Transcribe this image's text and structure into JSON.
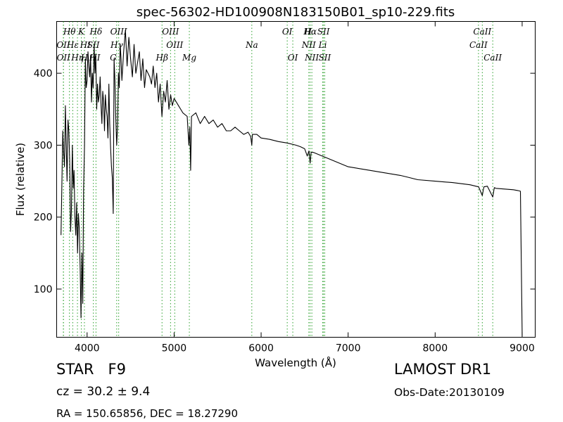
{
  "chart_data": {
    "type": "line",
    "title": "spec-56302-HD100908N183150B01_sp10-229.fits",
    "xlabel": "Wavelength (Å)",
    "ylabel": "Flux (relative)",
    "xlim": [
      3650,
      9150
    ],
    "ylim": [
      33,
      472
    ],
    "xticks": [
      4000,
      5000,
      6000,
      7000,
      8000,
      9000
    ],
    "yticks": [
      100,
      200,
      300,
      400
    ],
    "grid": false,
    "line_color": "#000000",
    "marker_color": "#2ca02c",
    "series": [
      {
        "x": [
          3700,
          3710,
          3720,
          3730,
          3740,
          3750,
          3760,
          3770,
          3780,
          3790,
          3800,
          3810,
          3820,
          3830,
          3840,
          3850,
          3860,
          3870,
          3880,
          3890,
          3900,
          3910,
          3920,
          3930,
          3940,
          3950,
          3960,
          3970,
          3980,
          3990,
          4000,
          4010,
          4020,
          4030,
          4040,
          4050,
          4060,
          4070,
          4080,
          4090,
          4100,
          4110,
          4120,
          4130,
          4140,
          4150,
          4160,
          4170,
          4180,
          4190,
          4200,
          4210,
          4220,
          4230,
          4240,
          4250,
          4260,
          4270,
          4280,
          4290,
          4300,
          4310,
          4320,
          4330,
          4340,
          4350,
          4360,
          4370,
          4380,
          4390,
          4400,
          4420,
          4440,
          4460,
          4480,
          4500,
          4520,
          4540,
          4560,
          4580,
          4600,
          4620,
          4640,
          4660,
          4680,
          4700,
          4720,
          4740,
          4760,
          4780,
          4800,
          4820,
          4840,
          4860,
          4880,
          4900,
          4920,
          4940,
          4960,
          4980,
          5000,
          5050,
          5100,
          5150,
          5170,
          5180,
          5190,
          5200,
          5250,
          5300,
          5350,
          5400,
          5450,
          5500,
          5550,
          5600,
          5650,
          5700,
          5750,
          5800,
          5850,
          5880,
          5893,
          5900,
          5950,
          6000,
          6100,
          6200,
          6300,
          6400,
          6450,
          6500,
          6530,
          6550,
          6563,
          6575,
          6600,
          6700,
          6800,
          6900,
          7000,
          7200,
          7400,
          7600,
          7700,
          7800,
          8000,
          8200,
          8400,
          8500,
          8542,
          8560,
          8600,
          8662,
          8680,
          8700,
          8800,
          8900,
          8950,
          8980,
          8990,
          9000
        ],
        "y": [
          175,
          245,
          320,
          290,
          270,
          355,
          300,
          250,
          335,
          320,
          280,
          180,
          210,
          300,
          240,
          265,
          200,
          175,
          220,
          150,
          205,
          185,
          130,
          60,
          150,
          80,
          240,
          300,
          420,
          380,
          390,
          430,
          410,
          395,
          425,
          360,
          400,
          380,
          440,
          400,
          425,
          350,
          385,
          360,
          370,
          395,
          355,
          330,
          375,
          360,
          320,
          370,
          350,
          340,
          310,
          385,
          330,
          295,
          270,
          255,
          205,
          420,
          390,
          335,
          300,
          325,
          400,
          380,
          440,
          420,
          390,
          430,
          460,
          410,
          450,
          420,
          395,
          440,
          400,
          415,
          430,
          390,
          420,
          380,
          405,
          400,
          395,
          385,
          410,
          380,
          400,
          360,
          385,
          340,
          375,
          360,
          390,
          350,
          370,
          355,
          365,
          355,
          345,
          340,
          300,
          325,
          265,
          340,
          345,
          330,
          340,
          330,
          335,
          325,
          330,
          320,
          320,
          325,
          320,
          315,
          318,
          312,
          300,
          315,
          315,
          310,
          308,
          305,
          303,
          300,
          298,
          295,
          285,
          292,
          275,
          290,
          290,
          285,
          280,
          275,
          270,
          266,
          262,
          258,
          255,
          252,
          250,
          248,
          245,
          242,
          230,
          242,
          243,
          228,
          241,
          240,
          239,
          238,
          237,
          236,
          140,
          35
        ]
      }
    ],
    "line_markers": [
      {
        "label": "Hθ",
        "x": 3797,
        "row": 1
      },
      {
        "label": "K",
        "x": 3934,
        "row": 1
      },
      {
        "label": "Hδ",
        "x": 4102,
        "row": 1
      },
      {
        "label": "OIII",
        "x": 4363,
        "row": 1
      },
      {
        "label": "OIII",
        "x": 4959,
        "row": 1
      },
      {
        "label": "OI",
        "x": 6300,
        "row": 1
      },
      {
        "label": "Hα",
        "x": 6563,
        "row": 1
      },
      {
        "label": "SII",
        "x": 6717,
        "row": 1
      },
      {
        "label": "CaII",
        "x": 8542,
        "row": 1
      },
      {
        "label": "OII",
        "x": 3727,
        "row": 2
      },
      {
        "label": "Hε",
        "x": 3835,
        "row": 2
      },
      {
        "label": "SII",
        "x": 4072,
        "row": 2
      },
      {
        "label": "Hγ",
        "x": 4340,
        "row": 2
      },
      {
        "label": "OIII",
        "x": 5007,
        "row": 2
      },
      {
        "label": "Na",
        "x": 5893,
        "row": 2
      },
      {
        "label": "NII",
        "x": 6548,
        "row": 2
      },
      {
        "label": "Li",
        "x": 6708,
        "row": 2
      },
      {
        "label": "CaII",
        "x": 8498,
        "row": 2
      },
      {
        "label": "OII",
        "x": 3729,
        "row": 3
      },
      {
        "label": "Hη",
        "x": 3889,
        "row": 3
      },
      {
        "label": "H",
        "x": 3969,
        "row": 3
      },
      {
        "label": "Hβ",
        "x": 4861,
        "row": 3
      },
      {
        "label": "Mg",
        "x": 5175,
        "row": 3
      },
      {
        "label": "OI",
        "x": 6364,
        "row": 3
      },
      {
        "label": "NII",
        "x": 6583,
        "row": 3
      },
      {
        "label": "SII",
        "x": 6731,
        "row": 3
      },
      {
        "label": "CaII",
        "x": 8662,
        "row": 3
      }
    ],
    "label_fragments": [
      {
        "label": "HI",
        "x": 3980,
        "row": 2
      },
      {
        "label": "HI",
        "x": 4090,
        "row": 3
      },
      {
        "label": "G",
        "x": 4300,
        "row": 3
      },
      {
        "label": "H",
        "x": 6540,
        "row": 1
      }
    ]
  },
  "info": {
    "class": "STAR",
    "subclass": "F9",
    "cz": "cz = 30.2 ± 9.4",
    "radec": "RA = 150.65856, DEC = 18.27290",
    "survey": "LAMOST DR1",
    "obs_date": "Obs-Date:20130109"
  }
}
